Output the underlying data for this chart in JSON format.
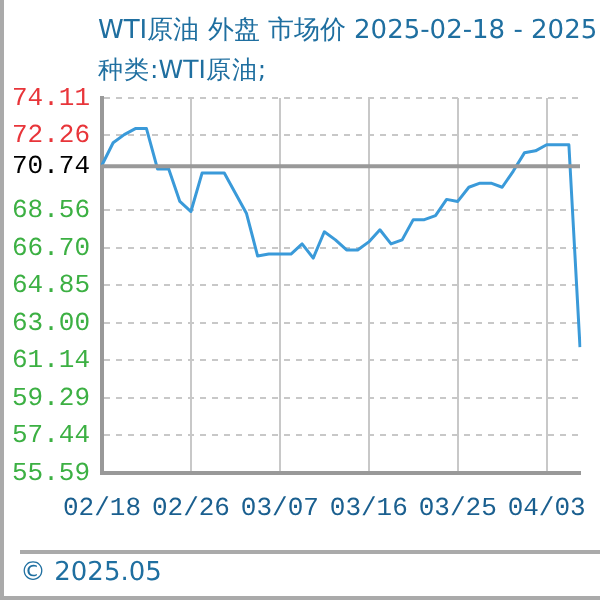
{
  "chart_data": {
    "type": "line",
    "title": "WTI原油 外盘 市场价 2025-02-18 - 2025",
    "subtitle": "种类:WTI原油;",
    "annotations": [
      "© 2025.05"
    ],
    "categories": [
      "02/18",
      null,
      null,
      null,
      null,
      null,
      null,
      null,
      "02/26",
      null,
      null,
      null,
      null,
      null,
      null,
      null,
      "03/07",
      null,
      null,
      null,
      null,
      null,
      null,
      null,
      "03/16",
      null,
      null,
      null,
      null,
      null,
      null,
      null,
      "03/25",
      null,
      null,
      null,
      null,
      null,
      null,
      null,
      "04/03",
      null,
      null,
      null
    ],
    "values": [
      70.8,
      71.9,
      72.3,
      72.6,
      72.6,
      70.6,
      70.6,
      69.0,
      68.5,
      70.4,
      70.4,
      70.4,
      69.4,
      68.4,
      66.3,
      66.4,
      66.4,
      66.4,
      66.9,
      66.2,
      67.5,
      67.1,
      66.6,
      66.6,
      67.0,
      67.6,
      66.9,
      67.1,
      68.1,
      68.1,
      68.3,
      69.1,
      69.0,
      69.7,
      69.9,
      69.9,
      69.7,
      70.5,
      71.4,
      71.5,
      71.8,
      71.8,
      71.8,
      61.8
    ],
    "color": "#3a9ad9",
    "ylim": [
      55.59,
      74.11
    ],
    "yticks": [
      55.59,
      57.44,
      59.29,
      61.14,
      {
        "value": 63,
        "label": "63.00"
      },
      64.85,
      {
        "value": 66.7,
        "label": "66.70"
      },
      68.56,
      70.74,
      72.26,
      74.11
    ],
    "ref_lines": [
      {
        "axis": "y",
        "value": 70.74,
        "color": "#999999"
      }
    ],
    "grid": true
  }
}
